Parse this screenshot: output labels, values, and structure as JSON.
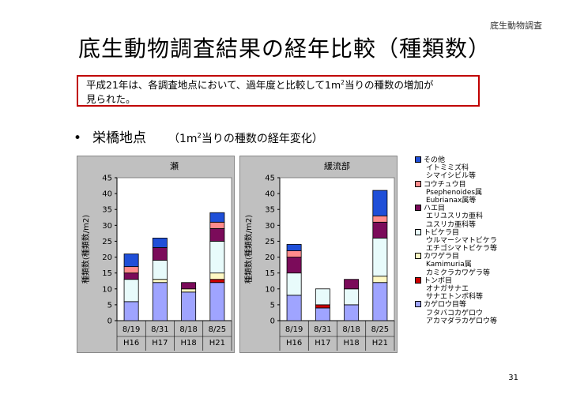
{
  "header": {
    "tag": "底生動物調査"
  },
  "title": "底生動物調査結果の経年比較（種類数）",
  "callout": {
    "line1_before": "平成21年は、各調査地点において、過年度と比較して1m",
    "line1_sup": "2",
    "line1_after": "当りの種数の増加が",
    "line2": "見られた。"
  },
  "bullet": {
    "marker": "•",
    "label": "栄橋地点",
    "sub_before": "（1m",
    "sub_sup": "2",
    "sub_after": "当りの種数の経年変化）"
  },
  "colors": {
    "sonota": "#1f4fd8",
    "kouchuu": "#ff8c8c",
    "hae": "#7b0b5a",
    "tobikera": "#e8fbfb",
    "kagerou": "#fff9c4",
    "tonbo": "#cc0000",
    "kagerou_sub": "#9fa4ff"
  },
  "legend": [
    {
      "color": "#1f4fd8",
      "label": "その他",
      "items": [
        "イトミミズ科",
        "シマイシビル等"
      ]
    },
    {
      "color": "#ff8c8c",
      "label": "コウチュウ目",
      "items": [
        "Psephenoides属",
        "Eubrianax属等"
      ]
    },
    {
      "color": "#7b0b5a",
      "label": "ハエ目",
      "items": [
        "エリユスリカ亜科",
        "ユスリカ亜科等"
      ]
    },
    {
      "color": "#e8fbfb",
      "label": "トビケラ目",
      "items": [
        "ウルマーシマトビケラ",
        "エチゴシマトビケラ等"
      ]
    },
    {
      "color": "#fff9c4",
      "label": "カワゲラ目",
      "items": [
        "Kamimuria属",
        "カミクラカワゲラ等"
      ]
    },
    {
      "color": "#cc0000",
      "label": "トンボ目",
      "items": [
        "オナガサナエ",
        "サナエトンボ科等"
      ]
    },
    {
      "color": "#9fa4ff",
      "label": "カゲロウ目等",
      "items": [
        "フタバコカゲロウ",
        "アカマダラカゲロウ等"
      ]
    }
  ],
  "chart_data": [
    {
      "type": "bar",
      "title": "瀬",
      "ylabel": "種類数(種類数/m2)",
      "ylim": [
        0,
        45
      ],
      "yticks": [
        "0",
        "5",
        "10",
        "15",
        "20",
        "25",
        "30",
        "35",
        "40",
        "45"
      ],
      "categories": [
        "8/19",
        "8/31",
        "8/18",
        "8/25"
      ],
      "years": [
        "H16",
        "H17",
        "H18",
        "H21"
      ],
      "stacked": true,
      "series": [
        {
          "key": "kagerou_sub",
          "values": [
            6,
            12,
            9,
            12
          ]
        },
        {
          "key": "tonbo",
          "values": [
            0,
            0,
            0,
            1
          ]
        },
        {
          "key": "kagerou",
          "values": [
            0,
            1,
            1,
            2
          ]
        },
        {
          "key": "tobikera",
          "values": [
            7,
            6,
            0,
            10
          ]
        },
        {
          "key": "hae",
          "values": [
            2,
            4,
            2,
            4
          ]
        },
        {
          "key": "kouchuu",
          "values": [
            2,
            0,
            0,
            2
          ]
        },
        {
          "key": "sonota",
          "values": [
            4,
            3,
            0,
            3
          ]
        }
      ]
    },
    {
      "type": "bar",
      "title": "緩流部",
      "ylabel": "種類数(種類数/m2)",
      "ylim": [
        0,
        45
      ],
      "yticks": [
        "0",
        "5",
        "10",
        "15",
        "20",
        "25",
        "30",
        "35",
        "40",
        "45"
      ],
      "categories": [
        "8/19",
        "8/31",
        "8/18",
        "8/25"
      ],
      "years": [
        "H16",
        "H17",
        "H18",
        "H21"
      ],
      "stacked": true,
      "series": [
        {
          "key": "kagerou_sub",
          "values": [
            8,
            4,
            5,
            12
          ]
        },
        {
          "key": "tonbo",
          "values": [
            0,
            1,
            0,
            0
          ]
        },
        {
          "key": "kagerou",
          "values": [
            0,
            0,
            0,
            2
          ]
        },
        {
          "key": "tobikera",
          "values": [
            7,
            5,
            5,
            12
          ]
        },
        {
          "key": "hae",
          "values": [
            5,
            0,
            3,
            5
          ]
        },
        {
          "key": "kouchuu",
          "values": [
            2,
            0,
            0,
            2
          ]
        },
        {
          "key": "sonota",
          "values": [
            2,
            0,
            0,
            8
          ]
        }
      ]
    }
  ],
  "page_number": "31"
}
